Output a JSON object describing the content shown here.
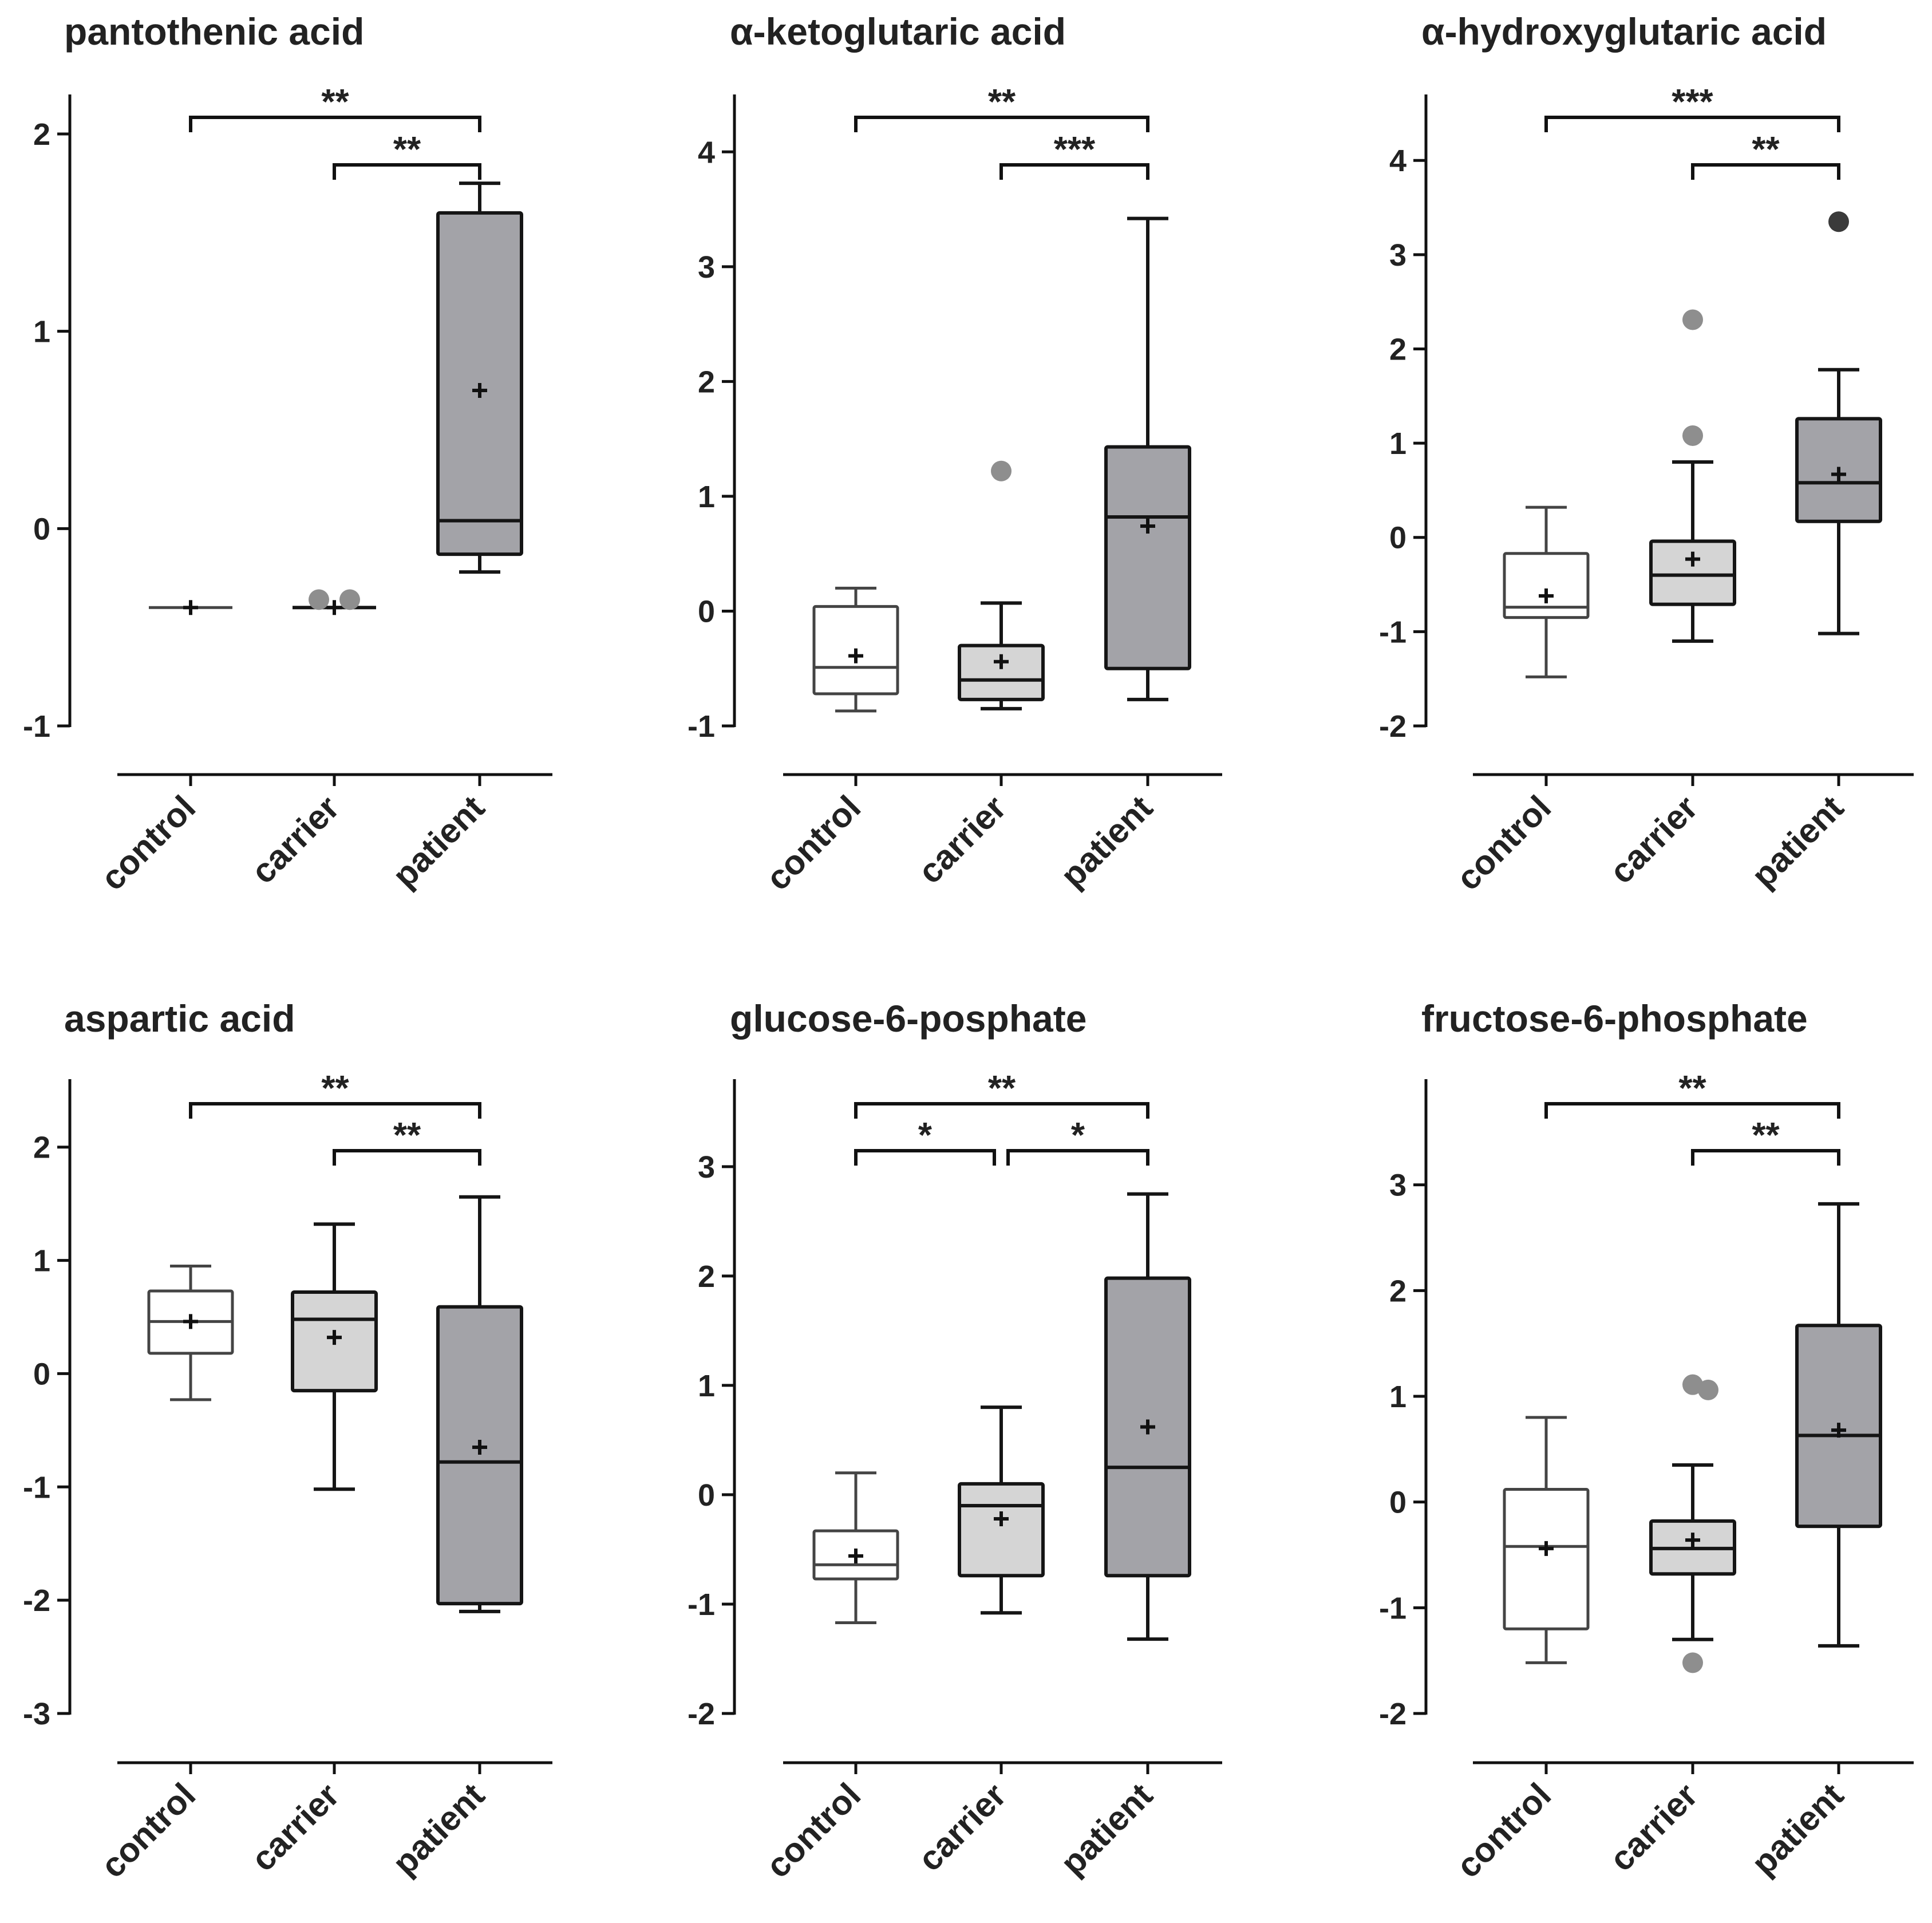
{
  "figure": {
    "groups": [
      "control",
      "carrier",
      "patient"
    ],
    "fills": {
      "control": "#ffffff",
      "carrier": "#d5d5d5",
      "patient": "#a3a3a8"
    },
    "strokes": {
      "control": "#444444",
      "carrier": "#151515",
      "patient": "#151515"
    },
    "outlier_colors": {
      "light": "#8e8e8e",
      "dark": "#3a3a3a"
    }
  },
  "chart_data": [
    {
      "type": "box",
      "title": "pantothenic acid",
      "categories": [
        "control",
        "carrier",
        "patient"
      ],
      "ylim": [
        -1,
        2.2
      ],
      "yticks": [
        -1,
        0,
        1,
        2
      ],
      "ytick_labels": [
        "-1",
        "0",
        "1",
        "2"
      ],
      "boxes": [
        {
          "group": "control",
          "whisker_low": -0.4,
          "q1": -0.4,
          "median": -0.4,
          "q3": -0.4,
          "whisker_high": -0.4,
          "mean": -0.4
        },
        {
          "group": "carrier",
          "whisker_low": -0.4,
          "q1": -0.4,
          "median": -0.4,
          "q3": -0.4,
          "whisker_high": -0.4,
          "mean": -0.4
        },
        {
          "group": "patient",
          "whisker_low": -0.22,
          "q1": -0.13,
          "median": 0.04,
          "q3": 1.6,
          "whisker_high": 1.75,
          "mean": 0.7
        }
      ],
      "outliers": [
        {
          "group": "carrier",
          "value": -0.36,
          "side": -1,
          "tone": "light"
        },
        {
          "group": "carrier",
          "value": -0.36,
          "side": 1,
          "tone": "light"
        }
      ],
      "significance": [
        {
          "from": 0,
          "to": 2,
          "level": 2,
          "label": "**"
        },
        {
          "from": 1,
          "to": 2,
          "level": 1,
          "label": "**"
        }
      ]
    },
    {
      "type": "box",
      "title": "α-ketoglutaric acid",
      "categories": [
        "control",
        "carrier",
        "patient"
      ],
      "ylim": [
        -1,
        4.5
      ],
      "yticks": [
        -1,
        0,
        1,
        2,
        3,
        4
      ],
      "ytick_labels": [
        "-1",
        "0",
        "1",
        "2",
        "3",
        "4"
      ],
      "boxes": [
        {
          "group": "control",
          "whisker_low": -0.87,
          "q1": -0.72,
          "median": -0.49,
          "q3": 0.04,
          "whisker_high": 0.2,
          "mean": -0.39
        },
        {
          "group": "carrier",
          "whisker_low": -0.85,
          "q1": -0.77,
          "median": -0.6,
          "q3": -0.3,
          "whisker_high": 0.07,
          "mean": -0.44
        },
        {
          "group": "patient",
          "whisker_low": -0.77,
          "q1": -0.5,
          "median": 0.82,
          "q3": 1.43,
          "whisker_high": 3.42,
          "mean": 0.74
        }
      ],
      "outliers": [
        {
          "group": "carrier",
          "value": 1.22,
          "side": 0,
          "tone": "light"
        }
      ],
      "significance": [
        {
          "from": 0,
          "to": 2,
          "level": 2,
          "label": "**"
        },
        {
          "from": 1,
          "to": 2,
          "level": 1,
          "label": "***"
        }
      ]
    },
    {
      "type": "box",
      "title": "α-hydroxyglutaric acid",
      "categories": [
        "control",
        "carrier",
        "patient"
      ],
      "ylim": [
        -2,
        4.7
      ],
      "yticks": [
        -2,
        -1,
        0,
        1,
        2,
        3,
        4
      ],
      "ytick_labels": [
        "-2",
        "-1",
        "0",
        "1",
        "2",
        "3",
        "4"
      ],
      "boxes": [
        {
          "group": "control",
          "whisker_low": -1.48,
          "q1": -0.85,
          "median": -0.74,
          "q3": -0.17,
          "whisker_high": 0.32,
          "mean": -0.62
        },
        {
          "group": "carrier",
          "whisker_low": -1.1,
          "q1": -0.71,
          "median": -0.4,
          "q3": -0.04,
          "whisker_high": 0.8,
          "mean": -0.23
        },
        {
          "group": "patient",
          "whisker_low": -1.02,
          "q1": 0.17,
          "median": 0.58,
          "q3": 1.26,
          "whisker_high": 1.78,
          "mean": 0.67
        }
      ],
      "outliers": [
        {
          "group": "carrier",
          "value": 2.31,
          "side": 0,
          "tone": "light"
        },
        {
          "group": "carrier",
          "value": 1.08,
          "side": 0,
          "tone": "light"
        },
        {
          "group": "patient",
          "value": 3.35,
          "side": 0,
          "tone": "dark"
        }
      ],
      "significance": [
        {
          "from": 0,
          "to": 2,
          "level": 2,
          "label": "***"
        },
        {
          "from": 1,
          "to": 2,
          "level": 1,
          "label": "**"
        }
      ]
    },
    {
      "type": "box",
      "title": "aspartic acid",
      "categories": [
        "control",
        "carrier",
        "patient"
      ],
      "ylim": [
        -3,
        2.6
      ],
      "yticks": [
        -3,
        -2,
        -1,
        0,
        1,
        2
      ],
      "ytick_labels": [
        "-3",
        "-2",
        "-1",
        "0",
        "1",
        "2"
      ],
      "boxes": [
        {
          "group": "control",
          "whisker_low": -0.23,
          "q1": 0.18,
          "median": 0.46,
          "q3": 0.73,
          "whisker_high": 0.95,
          "mean": 0.46
        },
        {
          "group": "carrier",
          "whisker_low": -1.02,
          "q1": -0.15,
          "median": 0.48,
          "q3": 0.72,
          "whisker_high": 1.32,
          "mean": 0.32
        },
        {
          "group": "patient",
          "whisker_low": -2.1,
          "q1": -2.03,
          "median": -0.78,
          "q3": 0.59,
          "whisker_high": 1.56,
          "mean": -0.65
        }
      ],
      "outliers": [],
      "significance": [
        {
          "from": 0,
          "to": 2,
          "level": 2,
          "label": "**"
        },
        {
          "from": 1,
          "to": 2,
          "level": 1,
          "label": "**"
        }
      ]
    },
    {
      "type": "box",
      "title": "glucose-6-posphate",
      "categories": [
        "control",
        "carrier",
        "patient"
      ],
      "ylim": [
        -2,
        3.8
      ],
      "yticks": [
        -2,
        -1,
        0,
        1,
        2,
        3
      ],
      "ytick_labels": [
        "-2",
        "-1",
        "0",
        "1",
        "2",
        "3"
      ],
      "boxes": [
        {
          "group": "control",
          "whisker_low": -1.17,
          "q1": -0.77,
          "median": -0.64,
          "q3": -0.33,
          "whisker_high": 0.2,
          "mean": -0.56
        },
        {
          "group": "carrier",
          "whisker_low": -1.08,
          "q1": -0.74,
          "median": -0.1,
          "q3": 0.1,
          "whisker_high": 0.8,
          "mean": -0.22
        },
        {
          "group": "patient",
          "whisker_low": -1.32,
          "q1": -0.74,
          "median": 0.25,
          "q3": 1.98,
          "whisker_high": 2.75,
          "mean": 0.62
        }
      ],
      "outliers": [],
      "significance": [
        {
          "from": 0,
          "to": 2,
          "level": 2,
          "label": "**"
        },
        {
          "from": 0,
          "to": 1,
          "level": 1,
          "label": "*"
        },
        {
          "from": 1,
          "to": 2,
          "level": 1,
          "label": "*"
        }
      ]
    },
    {
      "type": "box",
      "title": "fructose-6-phosphate",
      "categories": [
        "control",
        "carrier",
        "patient"
      ],
      "ylim": [
        -2,
        4.0
      ],
      "yticks": [
        -2,
        -1,
        0,
        1,
        2,
        3
      ],
      "ytick_labels": [
        "-2",
        "-1",
        "0",
        "1",
        "2",
        "3"
      ],
      "boxes": [
        {
          "group": "control",
          "whisker_low": -1.52,
          "q1": -1.2,
          "median": -0.42,
          "q3": 0.12,
          "whisker_high": 0.8,
          "mean": -0.44
        },
        {
          "group": "carrier",
          "whisker_low": -1.3,
          "q1": -0.68,
          "median": -0.44,
          "q3": -0.18,
          "whisker_high": 0.35,
          "mean": -0.36
        },
        {
          "group": "patient",
          "whisker_low": -1.36,
          "q1": -0.23,
          "median": 0.63,
          "q3": 1.67,
          "whisker_high": 2.82,
          "mean": 0.68
        }
      ],
      "outliers": [
        {
          "group": "carrier",
          "value": 1.11,
          "side": 0,
          "tone": "light"
        },
        {
          "group": "carrier",
          "value": -1.52,
          "side": 0,
          "tone": "light"
        },
        {
          "group": "carrier",
          "value": 1.06,
          "side": 1,
          "tone": "light"
        }
      ],
      "significance": [
        {
          "from": 0,
          "to": 2,
          "level": 2,
          "label": "**"
        },
        {
          "from": 1,
          "to": 2,
          "level": 1,
          "label": "**"
        }
      ]
    }
  ]
}
